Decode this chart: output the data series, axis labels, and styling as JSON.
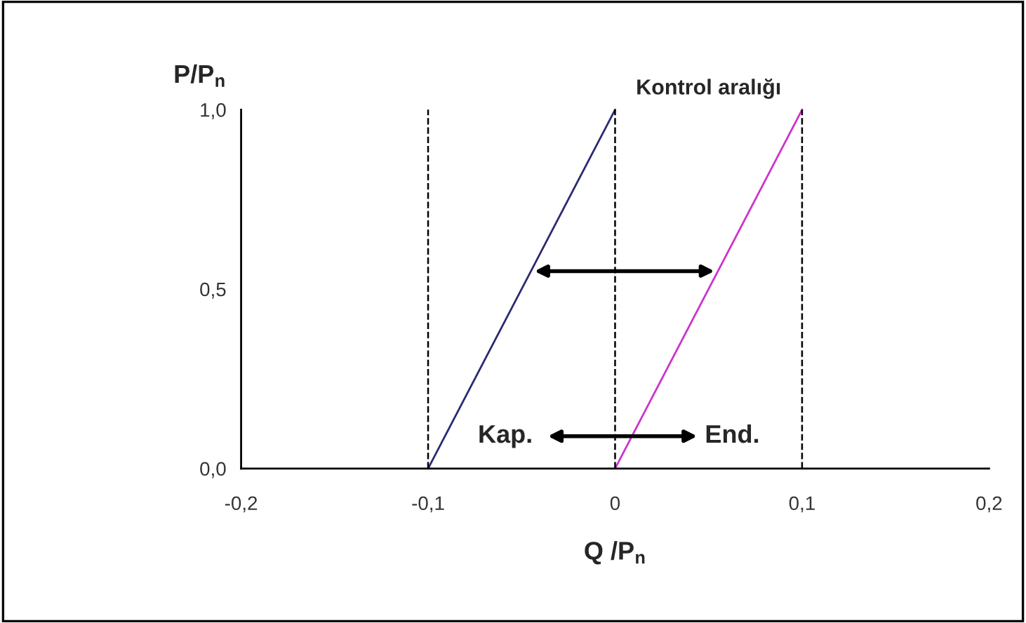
{
  "chart_data": {
    "type": "line",
    "xlabel": "Q /P$_{n}$",
    "ylabel": "P/P$_{n}$",
    "series": [
      {
        "color": "#2a2a72",
        "x": [
          -0.1,
          0
        ],
        "values": [
          0,
          1
        ]
      },
      {
        "color": "#cc33cc",
        "x": [
          0,
          0.1
        ],
        "values": [
          0,
          1
        ]
      }
    ],
    "xlim": [
      -0.2,
      0.2
    ],
    "ylim": [
      0,
      1
    ],
    "xticks": [
      {
        "value": -0.2,
        "label": "-0,2"
      },
      {
        "value": -0.1,
        "label": "-0,1"
      },
      0,
      {
        "value": 0.1,
        "label": "0,1"
      },
      {
        "value": 0.2,
        "label": "0,2"
      }
    ],
    "yticks": [
      {
        "value": 0,
        "label": "0,0"
      },
      {
        "value": 0.5,
        "label": "0,5"
      },
      {
        "value": 1,
        "label": "1,0"
      }
    ],
    "ref_lines": [
      {
        "axis": "x",
        "value": -0.1,
        "color": "#000000",
        "line_style": "dashed"
      },
      {
        "axis": "x",
        "value": 0,
        "color": "#000000",
        "line_style": "dashed"
      },
      {
        "axis": "x",
        "value": 0.1,
        "color": "#000000",
        "line_style": "dashed"
      }
    ],
    "annotations": [
      "Kontrol aralığı",
      "Kap.",
      "End."
    ],
    "grid": false,
    "legend": false,
    "marker": "none",
    "line_style": "solid"
  }
}
